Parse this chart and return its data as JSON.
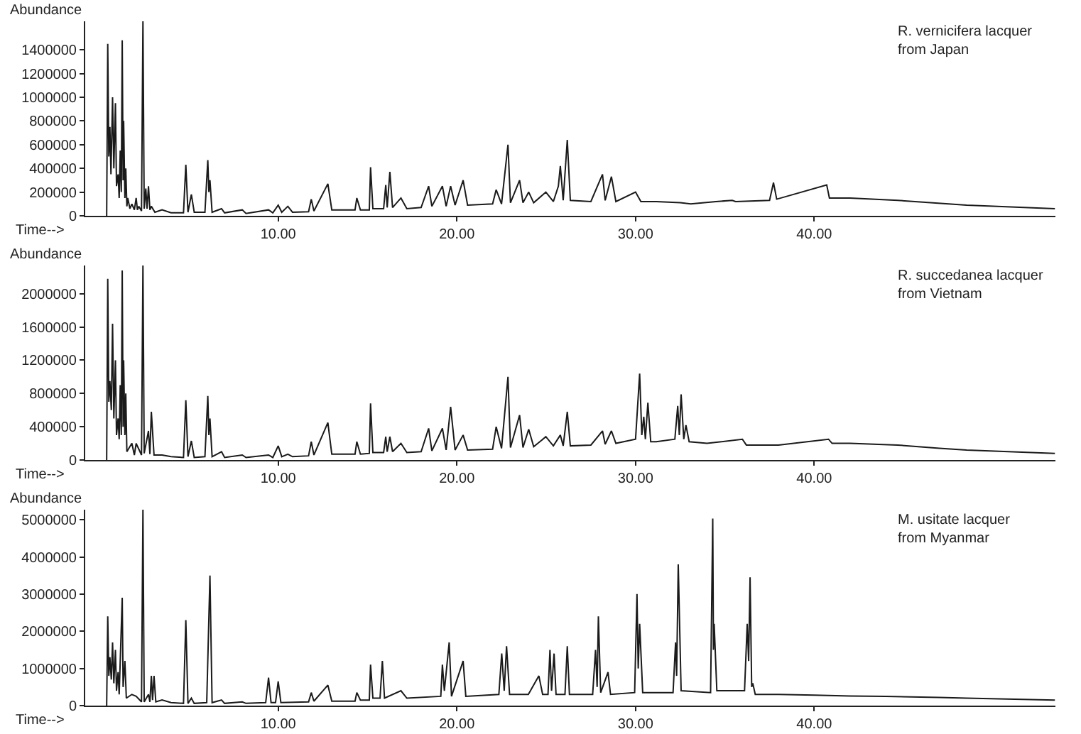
{
  "chart_data": [
    {
      "type": "line",
      "ylabel": "Abundance",
      "xlabel": "Time-->",
      "annotations": [
        "R. vernicifera lacquer\nfrom Japan"
      ],
      "xlim": [
        -0.8,
        53.5
      ],
      "ylim": [
        0,
        1640000
      ],
      "xticks": [
        {
          "value": 10,
          "label": "10.00"
        },
        {
          "value": 20,
          "label": "20.00"
        },
        {
          "value": 30,
          "label": "30.00"
        },
        {
          "value": 40,
          "label": "40.00"
        }
      ],
      "yticks": [
        0,
        200000,
        400000,
        600000,
        800000,
        1000000,
        1200000,
        1400000
      ],
      "line_style": "solid",
      "x": [
        0.4,
        0.46,
        0.52,
        0.58,
        0.64,
        0.73,
        0.8,
        0.89,
        0.95,
        1.04,
        1.1,
        1.16,
        1.22,
        1.27,
        1.32,
        1.35,
        1.42,
        1.47,
        1.53,
        1.58,
        1.7,
        1.81,
        1.95,
        2.05,
        2.12,
        2.2,
        2.35,
        2.43,
        2.5,
        2.59,
        2.66,
        2.74,
        2.82,
        2.9,
        3.1,
        3.5,
        4.0,
        4.7,
        4.83,
        4.95,
        5.14,
        5.3,
        5.9,
        6.06,
        6.12,
        6.18,
        6.3,
        6.83,
        7.0,
        7.99,
        8.2,
        9.46,
        9.7,
        10.0,
        10.2,
        10.54,
        10.8,
        11.7,
        11.85,
        12.0,
        12.78,
        13.0,
        14.3,
        14.4,
        14.6,
        15.1,
        15.17,
        15.3,
        15.9,
        16.02,
        16.1,
        16.25,
        16.4,
        16.87,
        17.2,
        18.0,
        18.42,
        18.6,
        19.19,
        19.4,
        19.65,
        19.9,
        20.35,
        20.6,
        22.0,
        22.2,
        22.5,
        22.86,
        23.0,
        23.51,
        23.7,
        24.02,
        24.3,
        24.98,
        25.4,
        25.68,
        25.79,
        25.95,
        26.18,
        26.35,
        27.5,
        28.15,
        28.3,
        28.65,
        28.9,
        30.0,
        30.3,
        31.16,
        32.5,
        33.09,
        34.5,
        35.41,
        35.6,
        37.5,
        37.72,
        37.9,
        40.7,
        40.85,
        41.1,
        42.0,
        44.67,
        48.53,
        53.47
      ],
      "series": [
        {
          "color": "#1a1a1a",
          "values": [
            0,
            1450000,
            500000,
            750000,
            350000,
            1000000,
            400000,
            950000,
            250000,
            350000,
            150000,
            550000,
            200000,
            1480000,
            300000,
            800000,
            150000,
            400000,
            80000,
            150000,
            60000,
            100000,
            50000,
            150000,
            50000,
            80000,
            40000,
            1640000,
            60000,
            230000,
            60000,
            250000,
            50000,
            80000,
            30000,
            50000,
            25000,
            25000,
            430000,
            30000,
            180000,
            30000,
            30000,
            470000,
            200000,
            300000,
            30000,
            60000,
            25000,
            50000,
            20000,
            50000,
            25000,
            90000,
            30000,
            80000,
            30000,
            35000,
            140000,
            40000,
            270000,
            50000,
            50000,
            150000,
            50000,
            50000,
            410000,
            60000,
            60000,
            260000,
            70000,
            370000,
            70000,
            150000,
            60000,
            70000,
            250000,
            80000,
            250000,
            80000,
            250000,
            90000,
            300000,
            90000,
            100000,
            220000,
            100000,
            600000,
            110000,
            300000,
            110000,
            200000,
            110000,
            200000,
            120000,
            250000,
            420000,
            130000,
            640000,
            130000,
            120000,
            350000,
            130000,
            330000,
            120000,
            200000,
            120000,
            120000,
            110000,
            100000,
            120000,
            130000,
            120000,
            130000,
            280000,
            140000,
            260000,
            150000,
            150000,
            150000,
            130000,
            90000,
            60000
          ]
        }
      ]
    },
    {
      "type": "line",
      "ylabel": "Abundance",
      "xlabel": "Time-->",
      "annotations": [
        "R. succedanea lacquer\nfrom Vietnam"
      ],
      "xlim": [
        -0.8,
        53.5
      ],
      "ylim": [
        0,
        2340000
      ],
      "xticks": [
        {
          "value": 10,
          "label": "10.00"
        },
        {
          "value": 20,
          "label": "20.00"
        },
        {
          "value": 30,
          "label": "30.00"
        },
        {
          "value": 40,
          "label": "40.00"
        }
      ],
      "yticks": [
        0,
        400000,
        800000,
        1200000,
        1600000,
        2000000
      ],
      "line_style": "solid",
      "x": [
        0.4,
        0.46,
        0.52,
        0.58,
        0.66,
        0.73,
        0.8,
        0.89,
        0.95,
        1.04,
        1.1,
        1.16,
        1.22,
        1.27,
        1.32,
        1.35,
        1.42,
        1.47,
        1.53,
        1.81,
        1.95,
        2.05,
        2.35,
        2.43,
        2.5,
        2.74,
        2.82,
        2.9,
        3.05,
        3.5,
        4.0,
        4.7,
        4.83,
        4.95,
        5.14,
        5.3,
        5.9,
        6.06,
        6.12,
        6.18,
        6.3,
        6.83,
        7.0,
        7.99,
        8.2,
        9.46,
        9.7,
        10.0,
        10.2,
        10.54,
        10.8,
        11.7,
        11.85,
        12.0,
        12.78,
        13.0,
        14.3,
        14.4,
        14.6,
        15.1,
        15.17,
        15.3,
        15.9,
        16.02,
        16.1,
        16.25,
        16.4,
        16.87,
        17.2,
        18.0,
        18.42,
        18.6,
        19.19,
        19.4,
        19.65,
        19.9,
        20.35,
        20.6,
        22.0,
        22.2,
        22.5,
        22.86,
        23.0,
        23.51,
        23.7,
        24.02,
        24.3,
        24.98,
        25.4,
        25.79,
        25.95,
        26.18,
        26.35,
        27.5,
        28.15,
        28.3,
        28.65,
        28.9,
        30.0,
        30.23,
        30.35,
        30.46,
        30.55,
        30.69,
        30.85,
        31.16,
        32.2,
        32.36,
        32.45,
        32.55,
        32.7,
        32.82,
        33.0,
        34.0,
        35.98,
        36.2,
        38.0,
        40.8,
        41.0,
        42.0,
        44.67,
        47.0,
        48.53,
        53.47
      ],
      "series": [
        {
          "color": "#1a1a1a",
          "values": [
            0,
            2180000,
            700000,
            950000,
            600000,
            1640000,
            500000,
            1200000,
            300000,
            500000,
            250000,
            900000,
            300000,
            2280000,
            400000,
            1200000,
            300000,
            800000,
            100000,
            200000,
            60000,
            200000,
            60000,
            2340000,
            80000,
            350000,
            70000,
            580000,
            60000,
            60000,
            40000,
            30000,
            720000,
            40000,
            230000,
            30000,
            40000,
            770000,
            300000,
            500000,
            40000,
            100000,
            30000,
            60000,
            30000,
            60000,
            30000,
            170000,
            40000,
            70000,
            40000,
            50000,
            220000,
            60000,
            450000,
            70000,
            70000,
            220000,
            70000,
            80000,
            680000,
            90000,
            90000,
            280000,
            100000,
            280000,
            100000,
            200000,
            90000,
            100000,
            380000,
            110000,
            380000,
            120000,
            640000,
            120000,
            300000,
            120000,
            130000,
            400000,
            140000,
            1000000,
            150000,
            540000,
            150000,
            370000,
            160000,
            280000,
            170000,
            300000,
            170000,
            580000,
            170000,
            180000,
            350000,
            190000,
            350000,
            200000,
            250000,
            1040000,
            300000,
            520000,
            250000,
            690000,
            220000,
            220000,
            250000,
            650000,
            300000,
            790000,
            250000,
            420000,
            220000,
            200000,
            250000,
            180000,
            180000,
            250000,
            200000,
            200000,
            180000,
            140000,
            120000,
            80000
          ]
        }
      ]
    },
    {
      "type": "line",
      "ylabel": "Abundance",
      "xlabel": "Time-->",
      "annotations": [
        "M. usitate lacquer\nfrom Myanmar"
      ],
      "xlim": [
        -0.8,
        53.5
      ],
      "ylim": [
        0,
        5270000
      ],
      "xticks": [
        {
          "value": 10,
          "label": "10.00"
        },
        {
          "value": 20,
          "label": "20.00"
        },
        {
          "value": 30,
          "label": "30.00"
        },
        {
          "value": 40,
          "label": "40.00"
        }
      ],
      "yticks": [
        0,
        1000000,
        2000000,
        3000000,
        4000000,
        5000000
      ],
      "line_style": "solid",
      "x": [
        0.4,
        0.46,
        0.52,
        0.58,
        0.66,
        0.73,
        0.8,
        0.89,
        0.95,
        1.04,
        1.1,
        1.27,
        1.32,
        1.42,
        1.5,
        1.81,
        2.05,
        2.35,
        2.43,
        2.5,
        2.74,
        2.82,
        2.9,
        2.97,
        3.05,
        3.15,
        3.5,
        4.0,
        4.7,
        4.83,
        4.95,
        5.14,
        5.3,
        6.0,
        6.18,
        6.3,
        6.83,
        7.0,
        7.99,
        8.2,
        9.3,
        9.46,
        9.6,
        9.85,
        10.0,
        10.15,
        11.7,
        11.85,
        12.0,
        12.78,
        13.0,
        14.3,
        14.4,
        14.6,
        15.1,
        15.17,
        15.3,
        15.7,
        15.83,
        15.95,
        16.87,
        17.2,
        19.1,
        19.19,
        19.3,
        19.57,
        19.7,
        20.35,
        20.5,
        22.35,
        22.51,
        22.65,
        22.78,
        22.95,
        24.0,
        24.59,
        24.8,
        25.1,
        25.21,
        25.3,
        25.44,
        25.55,
        26.05,
        26.18,
        26.3,
        27.6,
        27.76,
        27.85,
        27.92,
        28.05,
        28.46,
        28.6,
        29.95,
        30.08,
        30.15,
        30.23,
        30.4,
        32.1,
        32.24,
        32.3,
        32.39,
        32.55,
        34.2,
        34.32,
        34.36,
        34.4,
        34.55,
        36.1,
        36.25,
        36.33,
        36.41,
        36.5,
        36.56,
        36.7,
        38.0,
        40.0,
        42.0,
        44.0,
        47.0,
        48.53,
        53.47
      ],
      "series": [
        {
          "color": "#1a1a1a",
          "values": [
            0,
            2400000,
            800000,
            1300000,
            700000,
            1700000,
            600000,
            1500000,
            400000,
            900000,
            300000,
            2900000,
            500000,
            1200000,
            200000,
            300000,
            250000,
            100000,
            5270000,
            100000,
            300000,
            100000,
            800000,
            150000,
            800000,
            100000,
            150000,
            80000,
            60000,
            2300000,
            60000,
            200000,
            60000,
            80000,
            3500000,
            80000,
            150000,
            60000,
            100000,
            60000,
            80000,
            750000,
            80000,
            80000,
            650000,
            80000,
            100000,
            350000,
            120000,
            550000,
            120000,
            120000,
            350000,
            150000,
            150000,
            1100000,
            200000,
            200000,
            1200000,
            200000,
            400000,
            200000,
            250000,
            1100000,
            400000,
            1700000,
            250000,
            1200000,
            250000,
            300000,
            1400000,
            400000,
            1600000,
            300000,
            300000,
            800000,
            300000,
            300000,
            1500000,
            400000,
            1400000,
            300000,
            300000,
            1600000,
            300000,
            300000,
            1500000,
            500000,
            2400000,
            350000,
            900000,
            300000,
            350000,
            3000000,
            1000000,
            2200000,
            350000,
            350000,
            1700000,
            800000,
            3800000,
            400000,
            350000,
            5030000,
            1500000,
            2200000,
            400000,
            400000,
            2200000,
            1200000,
            3450000,
            500000,
            600000,
            300000,
            300000,
            280000,
            260000,
            250000,
            220000,
            200000,
            150000
          ]
        }
      ]
    }
  ]
}
